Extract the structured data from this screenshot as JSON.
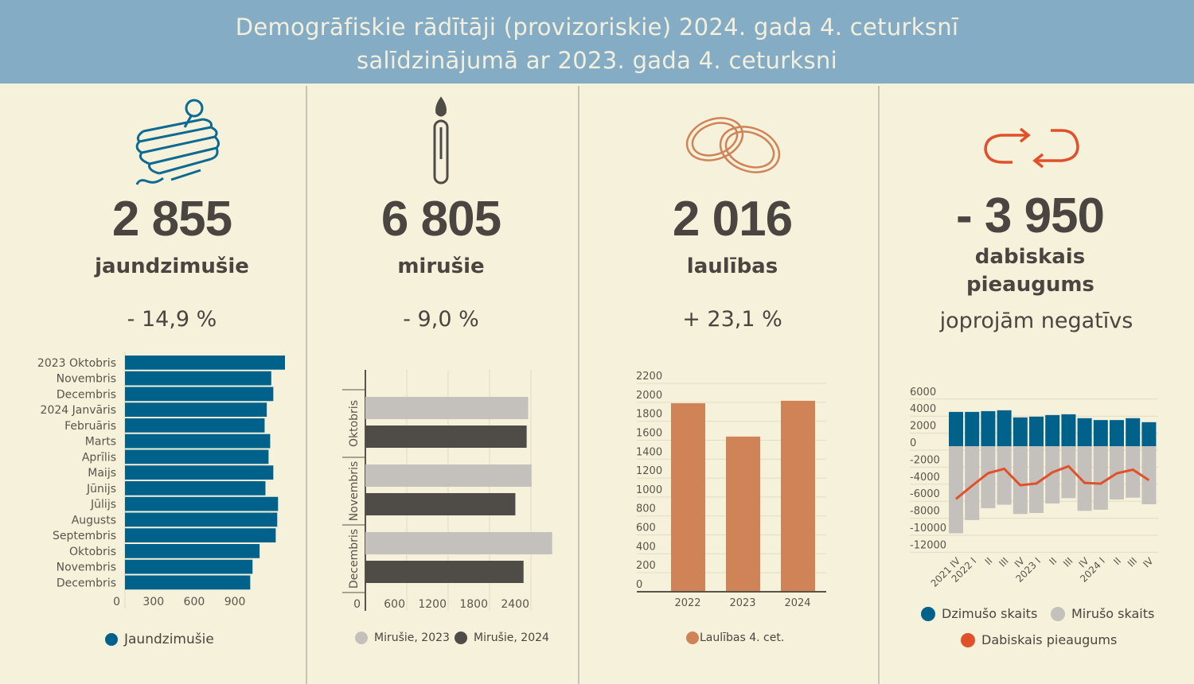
{
  "header": {
    "line1": "Demogrāfiskie rādītāji (provizoriskie) 2024. gada 4. ceturksnī",
    "line2": "salīdzinājumā ar 2023. gada 4. ceturksni"
  },
  "colors": {
    "births": "#00628b",
    "deaths2023": "#c4c1bc",
    "deaths2024": "#4f4c47",
    "marriages": "#d08356",
    "natural": "#e0502a",
    "header_bg": "#84adc5",
    "background": "#f6f1da"
  },
  "panels": [
    {
      "icon": "spinning-top-icon",
      "value": "2 855",
      "label": "jaundzimušie",
      "change": "- 14,9 %"
    },
    {
      "icon": "candle-icon",
      "value": "6 805",
      "label": "mirušie",
      "change": "- 9,0 %"
    },
    {
      "icon": "wedding-rings-icon",
      "value": "2 016",
      "label": "laulības",
      "change": "+ 23,1 %"
    },
    {
      "icon": "cycle-arrows-icon",
      "value": "- 3 950",
      "label": "dabiskais pieaugums",
      "change": "joprojām negatīvs"
    }
  ],
  "chart_data": [
    {
      "type": "bar",
      "orientation": "horizontal",
      "categories": [
        "2023 Oktobris",
        "Novembris",
        "Decembris",
        "2024 Janvāris",
        "Februāris",
        "Marts",
        "Aprīlis",
        "Maijs",
        "Jūnijs",
        "Jūlijs",
        "Augusts",
        "Septembris",
        "Oktobris",
        "Novembris",
        "Decembris"
      ],
      "series": [
        {
          "name": "Jaundzimušie",
          "values": [
            1179,
            1078,
            1093,
            1045,
            1029,
            1070,
            1058,
            1093,
            1035,
            1128,
            1122,
            1111,
            992,
            940,
            923
          ]
        }
      ],
      "xticks": [
        "0",
        "300",
        "600",
        "900"
      ],
      "xlim": [
        0,
        1200
      ],
      "legend": "bottom"
    },
    {
      "type": "bar",
      "orientation": "horizontal",
      "categories": [
        "Oktobris",
        "Novembris",
        "Decembris"
      ],
      "series": [
        {
          "name": "Mirušie, 2023",
          "values": [
            2360,
            2410,
            2708
          ]
        },
        {
          "name": "Mirušie, 2024",
          "values": [
            2338,
            2174,
            2293
          ]
        }
      ],
      "xticks": [
        "0",
        "600",
        "1200",
        "1800",
        "2400"
      ],
      "xlim": [
        0,
        2900
      ],
      "grid": true,
      "legend": "bottom"
    },
    {
      "type": "bar",
      "categories": [
        "2022",
        "2023",
        "2024"
      ],
      "series": [
        {
          "name": "Laulības 4. cet.",
          "values": [
            1990,
            1638,
            2016
          ]
        }
      ],
      "yticks": [
        "0",
        "200",
        "400",
        "600",
        "800",
        "1000",
        "1200",
        "1400",
        "1600",
        "1800",
        "2000",
        "2200"
      ],
      "ylim": [
        0,
        2200
      ],
      "grid": true,
      "legend": "bottom"
    },
    {
      "type": "bar+line",
      "categories": [
        "2021 IV",
        "2022 I",
        "II",
        "III",
        "IV",
        "2023 I",
        "II",
        "III",
        "IV",
        "2024 I",
        "II",
        "III",
        "IV"
      ],
      "series": [
        {
          "name": "Dzimušo skaits",
          "type": "bar",
          "values": [
            4030,
            4030,
            4120,
            4220,
            3380,
            3470,
            3660,
            3750,
            3290,
            3070,
            3070,
            3290,
            2820
          ]
        },
        {
          "name": "Mirušo skaits",
          "type": "bar",
          "values": [
            -10230,
            -8680,
            -7290,
            -6880,
            -7970,
            -7850,
            -6730,
            -6110,
            -7600,
            -7470,
            -6260,
            -6050,
            -6820
          ]
        },
        {
          "name": "Dabiskais pieaugums",
          "type": "line",
          "values": [
            -6200,
            -4650,
            -3170,
            -2660,
            -4590,
            -4380,
            -3070,
            -2360,
            -4310,
            -4400,
            -3190,
            -2760,
            -4000
          ]
        }
      ],
      "yticks": [
        "6000",
        "4000",
        "2000",
        "0",
        "-2000",
        "-4000",
        "-6000",
        "-8000",
        "-10000",
        "-12000"
      ],
      "ylim": [
        -12000,
        6000
      ],
      "grid": true,
      "legend": "bottom"
    }
  ]
}
